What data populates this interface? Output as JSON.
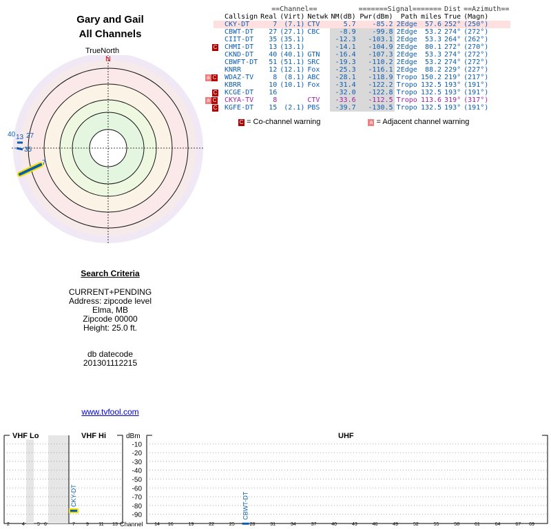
{
  "title_line1": "Gary and Gail",
  "title_line2": "All Channels",
  "compass": {
    "truenorth": "TrueNorth",
    "north": "N"
  },
  "radar_labels": [
    {
      "text": "40",
      "color": "#0a5cb0"
    },
    {
      "text": "13",
      "color": "#0a5cb0"
    },
    {
      "text": "27",
      "color": "#0a5cb0"
    },
    {
      "text": "35",
      "color": "#0a5cb0"
    },
    {
      "text": "7",
      "color": "#0a5cb0"
    }
  ],
  "criteria": {
    "heading": "Search Criteria",
    "lines": [
      "CURRENT+PENDING",
      "Address: zipcode level",
      "Elma, MB",
      "Zipcode 00000",
      "Height: 25.0 ft."
    ],
    "db_label": "db datecode",
    "db_value": "201301112215"
  },
  "link_text": "www.tvfool.com",
  "table": {
    "group_channel": "==Channel==",
    "group_signal": "=======Signal=======",
    "group_dist": "Dist",
    "group_azimuth": "==Azimuth==",
    "headers": [
      "Callsign",
      "Real",
      "(Virt)",
      "Netwk",
      "NM(dB)",
      "Pwr(dBm)",
      "Path",
      "miles",
      "True",
      "(Magn)"
    ],
    "rows": [
      {
        "warn": "",
        "callsign": "CKY-DT",
        "real": "7",
        "virt": "(7.1)",
        "netwk": "CTV",
        "nm": "5.7",
        "pwr": "-85.2",
        "path": "2Edge",
        "dist": "57.6",
        "true": "252°",
        "magn": "(250°)",
        "color": "#0a5cb0",
        "pink": true
      },
      {
        "warn": "",
        "callsign": "CBWT-DT",
        "real": "27",
        "virt": "(27.1)",
        "netwk": "CBC",
        "nm": "-8.9",
        "pwr": "-99.8",
        "path": "2Edge",
        "dist": "53.2",
        "true": "274°",
        "magn": "(272°)",
        "color": "#0a5cb0",
        "pink": false
      },
      {
        "warn": "",
        "callsign": "CIIT-DT",
        "real": "35",
        "virt": "(35.1)",
        "netwk": "",
        "nm": "-12.3",
        "pwr": "-103.1",
        "path": "2Edge",
        "dist": "53.3",
        "true": "264°",
        "magn": "(262°)",
        "color": "#0a5cb0",
        "pink": false
      },
      {
        "warn": "C",
        "callsign": "CHMI-DT",
        "real": "13",
        "virt": "(13.1)",
        "netwk": "",
        "nm": "-14.1",
        "pwr": "-104.9",
        "path": "2Edge",
        "dist": "80.1",
        "true": "272°",
        "magn": "(270°)",
        "color": "#0a5cb0",
        "pink": false
      },
      {
        "warn": "",
        "callsign": "CKND-DT",
        "real": "40",
        "virt": "(40.1)",
        "netwk": "GTN",
        "nm": "-16.4",
        "pwr": "-107.3",
        "path": "2Edge",
        "dist": "53.3",
        "true": "274°",
        "magn": "(272°)",
        "color": "#0a5cb0",
        "pink": false
      },
      {
        "warn": "",
        "callsign": "CBWFT-DT",
        "real": "51",
        "virt": "(51.1)",
        "netwk": "SRC",
        "nm": "-19.3",
        "pwr": "-110.2",
        "path": "2Edge",
        "dist": "53.2",
        "true": "274°",
        "magn": "(272°)",
        "color": "#0a5cb0",
        "pink": false
      },
      {
        "warn": "",
        "callsign": "KNRR",
        "real": "12",
        "virt": "(12.1)",
        "netwk": "Fox",
        "nm": "-25.3",
        "pwr": "-116.1",
        "path": "2Edge",
        "dist": "88.2",
        "true": "229°",
        "magn": "(227°)",
        "color": "#0a5cb0",
        "pink": false
      },
      {
        "warn": "aC",
        "callsign": "WDAZ-TV",
        "real": "8",
        "virt": "(8.1)",
        "netwk": "ABC",
        "nm": "-28.1",
        "pwr": "-118.9",
        "path": "Tropo",
        "dist": "150.2",
        "true": "219°",
        "magn": "(217°)",
        "color": "#0a5cb0",
        "pink": false
      },
      {
        "warn": "",
        "callsign": "KBRR",
        "real": "10",
        "virt": "(10.1)",
        "netwk": "Fox",
        "nm": "-31.4",
        "pwr": "-122.2",
        "path": "Tropo",
        "dist": "132.5",
        "true": "193°",
        "magn": "(191°)",
        "color": "#0a5cb0",
        "pink": false
      },
      {
        "warn": "C",
        "callsign": "KCGE-DT",
        "real": "16",
        "virt": "",
        "netwk": "",
        "nm": "-32.0",
        "pwr": "-122.8",
        "path": "Tropo",
        "dist": "132.5",
        "true": "193°",
        "magn": "(191°)",
        "color": "#0a5cb0",
        "pink": false
      },
      {
        "warn": "aC",
        "callsign": "CKYA-TV",
        "real": "8",
        "virt": "",
        "netwk": "CTV",
        "nm": "-33.6",
        "pwr": "-112.5",
        "path": "Tropo",
        "dist": "113.6",
        "true": "319°",
        "magn": "(317°)",
        "color": "#a020a0",
        "pink": false
      },
      {
        "warn": "C",
        "callsign": "KGFE-DT",
        "real": "15",
        "virt": "(2.1)",
        "netwk": "PBS",
        "nm": "-39.7",
        "pwr": "-130.5",
        "path": "Tropo",
        "dist": "132.5",
        "true": "193°",
        "magn": "(191°)",
        "color": "#0a5cb0",
        "pink": false
      }
    ]
  },
  "legend": {
    "co_mark": "C",
    "co_text": "= Co-channel warning",
    "adj_mark": "a",
    "adj_text": "= Adjacent channel warning"
  },
  "spectrum": {
    "vhf_lo": "VHF Lo",
    "vhf_hi": "VHF Hi",
    "uhf": "UHF",
    "dbm_label": "dBm",
    "dbm_ticks": [
      "-10",
      "-20",
      "-30",
      "-40",
      "-50",
      "-60",
      "-70",
      "-80",
      "-90"
    ],
    "channel_label": "Channel",
    "vhf_lo_ticks": [
      "2",
      "4",
      "5",
      "6"
    ],
    "vhf_hi_ticks": [
      "7",
      "9",
      "11",
      "13"
    ],
    "uhf_ticks": [
      "14",
      "16",
      "19",
      "22",
      "25",
      "28",
      "31",
      "34",
      "37",
      "40",
      "43",
      "46",
      "49",
      "52",
      "55",
      "58",
      "61",
      "64",
      "67",
      "69"
    ],
    "bars": [
      {
        "label": "CKY-DT",
        "channel": 7,
        "dbm": -85.2
      },
      {
        "label": "CBWT-DT",
        "channel": 27,
        "dbm": -99.8
      }
    ]
  }
}
